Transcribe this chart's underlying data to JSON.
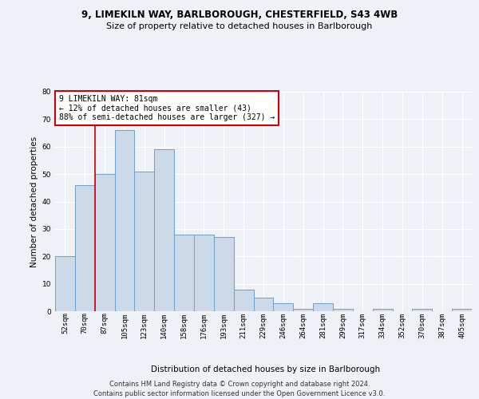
{
  "title_line1": "9, LIMEKILN WAY, BARLBOROUGH, CHESTERFIELD, S43 4WB",
  "title_line2": "Size of property relative to detached houses in Barlborough",
  "xlabel": "Distribution of detached houses by size in Barlborough",
  "ylabel": "Number of detached properties",
  "bar_labels": [
    "52sqm",
    "70sqm",
    "87sqm",
    "105sqm",
    "123sqm",
    "140sqm",
    "158sqm",
    "176sqm",
    "193sqm",
    "211sqm",
    "229sqm",
    "246sqm",
    "264sqm",
    "281sqm",
    "299sqm",
    "317sqm",
    "334sqm",
    "352sqm",
    "370sqm",
    "387sqm",
    "405sqm"
  ],
  "bar_values": [
    20,
    46,
    50,
    66,
    51,
    59,
    28,
    28,
    27,
    8,
    5,
    3,
    1,
    3,
    1,
    0,
    1,
    0,
    1,
    0,
    1
  ],
  "bar_color": "#ccd9e8",
  "bar_edge_color": "#6fa0c8",
  "vline_x": 1.5,
  "vline_color": "#cc0000",
  "annotation_text": "9 LIMEKILN WAY: 81sqm\n← 12% of detached houses are smaller (43)\n88% of semi-detached houses are larger (327) →",
  "annotation_box_color": "#ffffff",
  "annotation_box_edge": "#cc0000",
  "ylim": [
    0,
    80
  ],
  "yticks": [
    0,
    10,
    20,
    30,
    40,
    50,
    60,
    70,
    80
  ],
  "footer_line1": "Contains HM Land Registry data © Crown copyright and database right 2024.",
  "footer_line2": "Contains public sector information licensed under the Open Government Licence v3.0.",
  "bg_color": "#eef2f7",
  "plot_bg_color": "#eef2f7",
  "grid_color": "#ffffff",
  "title_fontsize": 8.5,
  "subtitle_fontsize": 8.0,
  "ylabel_fontsize": 7.5,
  "xlabel_fontsize": 7.5,
  "tick_fontsize": 6.5,
  "footer_fontsize": 6.0,
  "ann_fontsize": 7.0
}
